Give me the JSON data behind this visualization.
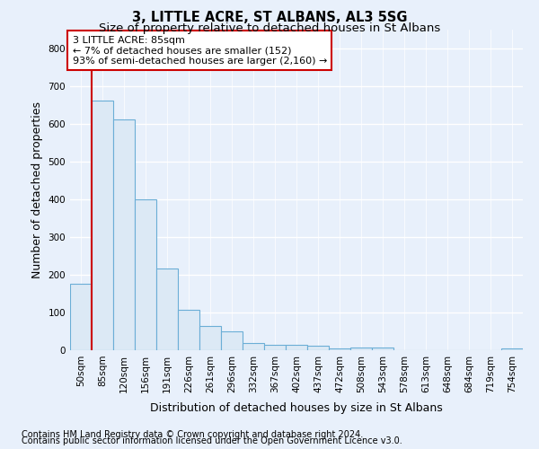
{
  "title": "3, LITTLE ACRE, ST ALBANS, AL3 5SG",
  "subtitle": "Size of property relative to detached houses in St Albans",
  "xlabel": "Distribution of detached houses by size in St Albans",
  "ylabel": "Number of detached properties",
  "footer_line1": "Contains HM Land Registry data © Crown copyright and database right 2024.",
  "footer_line2": "Contains public sector information licensed under the Open Government Licence v3.0.",
  "categories": [
    "50sqm",
    "85sqm",
    "120sqm",
    "156sqm",
    "191sqm",
    "226sqm",
    "261sqm",
    "296sqm",
    "332sqm",
    "367sqm",
    "402sqm",
    "437sqm",
    "472sqm",
    "508sqm",
    "543sqm",
    "578sqm",
    "613sqm",
    "648sqm",
    "684sqm",
    "719sqm",
    "754sqm"
  ],
  "values": [
    175,
    660,
    610,
    400,
    217,
    108,
    65,
    50,
    20,
    15,
    14,
    13,
    5,
    8,
    6,
    0,
    0,
    0,
    0,
    0,
    5
  ],
  "highlight_index": 1,
  "bar_color": "#adc6e0",
  "bar_face_color": "#dce9f5",
  "bar_edge_color": "#6baed6",
  "red_line_color": "#cc0000",
  "ylim": [
    0,
    850
  ],
  "yticks": [
    0,
    100,
    200,
    300,
    400,
    500,
    600,
    700,
    800
  ],
  "annotation_line1": "3 LITTLE ACRE: 85sqm",
  "annotation_line2": "← 7% of detached houses are smaller (152)",
  "annotation_line3": "93% of semi-detached houses are larger (2,160) →",
  "annotation_box_color": "white",
  "annotation_box_edge_color": "#cc0000",
  "bg_color": "#e8f0fb",
  "grid_color": "white",
  "title_fontsize": 10.5,
  "subtitle_fontsize": 9.5,
  "axis_label_fontsize": 9,
  "tick_fontsize": 7.5,
  "annotation_fontsize": 8,
  "footer_fontsize": 7
}
